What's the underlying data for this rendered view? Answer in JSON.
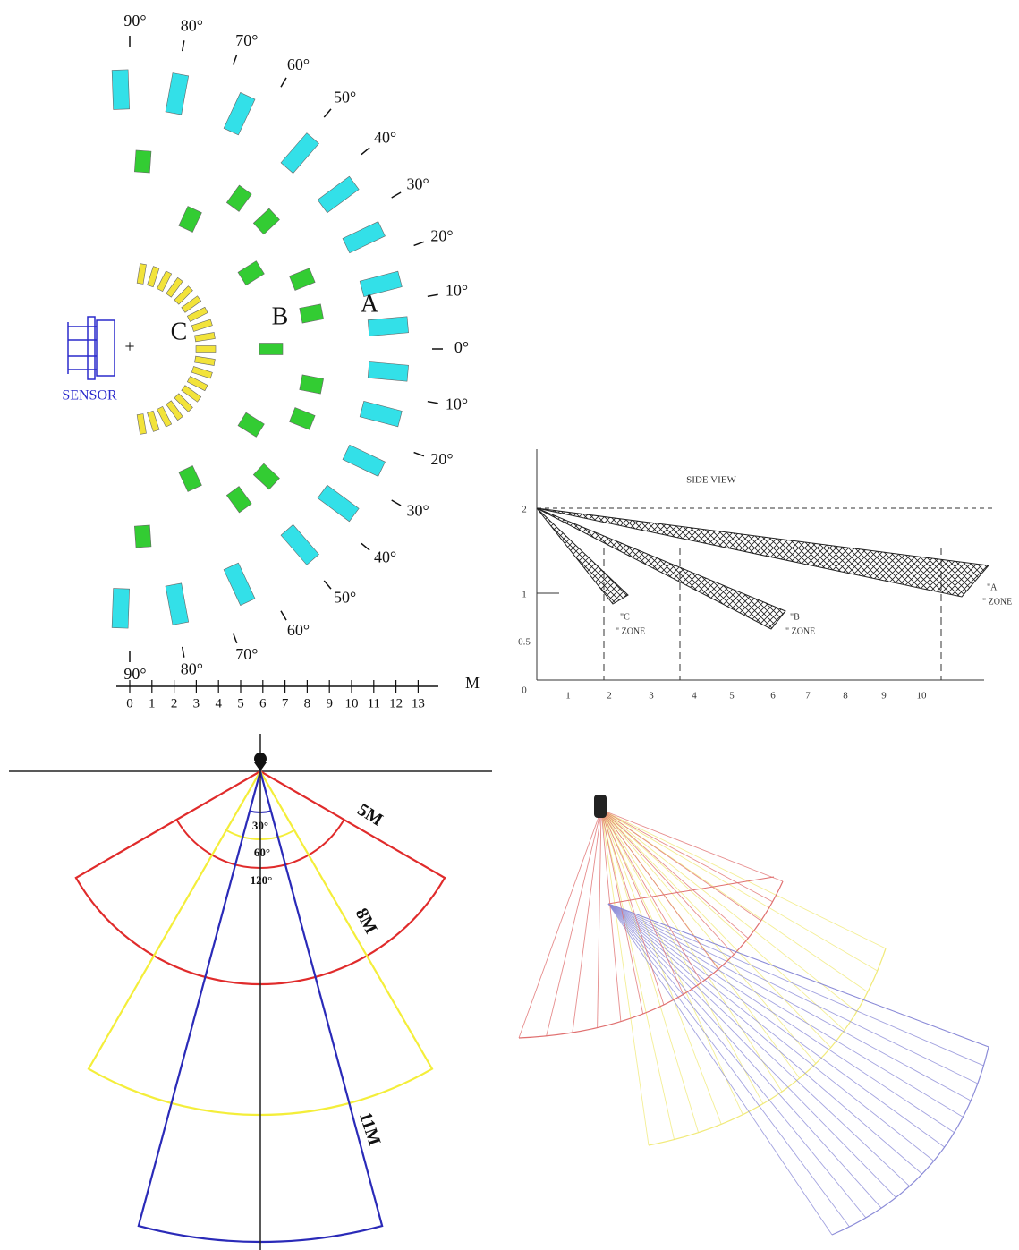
{
  "detection_pattern": {
    "angles_upper": [
      "90°",
      "80°",
      "70°",
      "60°",
      "50°",
      "40°",
      "30°",
      "20°",
      "10°"
    ],
    "angle_zero": "0°",
    "angles_lower": [
      "10°",
      "20°",
      "30°",
      "40°",
      "50°",
      "60°",
      "70°",
      "80°",
      "90°"
    ],
    "zones": [
      "A",
      "B",
      "C"
    ],
    "sensor": "SENSOR",
    "scale_unit": "M",
    "scale": [
      0,
      1,
      2,
      3,
      4,
      5,
      6,
      7,
      8,
      9,
      10,
      11,
      12,
      13
    ]
  },
  "side_view": {
    "title": "SIDE VIEW",
    "y_labels": [
      2,
      1,
      0.5,
      0
    ],
    "x_labels": [
      1,
      2,
      3,
      4,
      5,
      6,
      7,
      8,
      9,
      10
    ],
    "zones": [
      {
        "letter": "\"A",
        "word": "\" ZONE"
      },
      {
        "letter": "\"B",
        "word": "\" ZONE"
      },
      {
        "letter": "\"C",
        "word": "\" ZONE"
      }
    ]
  },
  "top_view": {
    "ranges": [
      "5M",
      "8M",
      "11M"
    ],
    "angles": [
      "30°",
      "60°",
      "120°"
    ]
  }
}
